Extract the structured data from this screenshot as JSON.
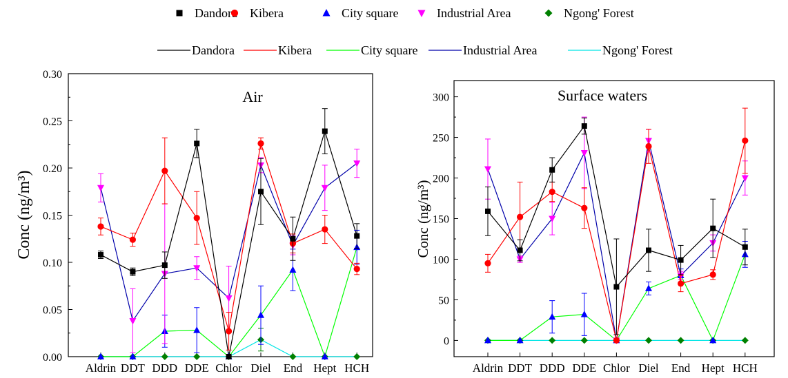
{
  "legend_markers": [
    {
      "label": "Dandora",
      "color": "#000000",
      "marker": "square"
    },
    {
      "label": "Kibera",
      "color": "#ff0000",
      "marker": "circle"
    },
    {
      "label": "City square",
      "color": "#0000ff",
      "marker": "triangle-up"
    },
    {
      "label": "Industrial Area",
      "color": "#ff00ff",
      "marker": "triangle-down"
    },
    {
      "label": "Ngong' Forest",
      "color": "#008000",
      "marker": "diamond"
    }
  ],
  "legend_lines": [
    {
      "label": "Dandora",
      "color": "#000000"
    },
    {
      "label": "Kibera",
      "color": "#ff0000"
    },
    {
      "label": "City square",
      "color": "#00ff00"
    },
    {
      "label": "Industrial Area",
      "color": "#0000aa"
    },
    {
      "label": "Ngong' Forest",
      "color": "#00e5e5"
    }
  ],
  "chart_data": [
    {
      "type": "line",
      "title": "Air",
      "ylabel": "Conc (ng/m³)",
      "ylim": [
        0,
        0.3
      ],
      "yticks": [
        0.0,
        0.05,
        0.1,
        0.15,
        0.2,
        0.25,
        0.3
      ],
      "ytick_labels": [
        "0.00",
        "0.05",
        "0.10",
        "0.15",
        "0.20",
        "0.25",
        "0.30"
      ],
      "categories": [
        "Aldrin",
        "DDT",
        "DDD",
        "DDE",
        "Chlor",
        "Diel",
        "End",
        "Hept",
        "HCH"
      ],
      "series": [
        {
          "name": "Dandora",
          "marker": "square",
          "marker_color": "#000000",
          "line_color": "#000000",
          "values": [
            0.108,
            0.09,
            0.097,
            0.226,
            0.0,
            0.175,
            0.125,
            0.239,
            0.128
          ],
          "errors": [
            0.004,
            0.004,
            0.014,
            0.015,
            0.0,
            0.035,
            0.023,
            0.024,
            0.013
          ]
        },
        {
          "name": "Kibera",
          "marker": "circle",
          "marker_color": "#ff0000",
          "line_color": "#ff0000",
          "values": [
            0.138,
            0.124,
            0.197,
            0.147,
            0.027,
            0.226,
            0.12,
            0.135,
            0.093
          ],
          "errors": [
            0.009,
            0.007,
            0.035,
            0.028,
            0.02,
            0.006,
            0.01,
            0.015,
            0.006
          ]
        },
        {
          "name": "City square",
          "marker": "triangle-up",
          "marker_color": "#0000ff",
          "line_color": "#00ff00",
          "values": [
            0.0,
            0.0,
            0.027,
            0.028,
            0.0,
            0.044,
            0.092,
            0.0,
            0.116
          ],
          "errors": [
            0.0,
            0.0,
            0.017,
            0.024,
            0.0,
            0.031,
            0.022,
            0.0,
            0.018
          ]
        },
        {
          "name": "Industrial Area",
          "marker": "triangle-down",
          "marker_color": "#ff00ff",
          "line_color": "#0000aa",
          "values": [
            0.179,
            0.038,
            0.088,
            0.094,
            0.062,
            0.203,
            0.118,
            0.179,
            0.205
          ],
          "errors": [
            0.015,
            0.034,
            0.074,
            0.012,
            0.034,
            0.008,
            0.01,
            0.024,
            0.015
          ]
        },
        {
          "name": "Ngong' Forest",
          "marker": "diamond",
          "marker_color": "#008000",
          "line_color": "#00e5e5",
          "values": [
            0.0,
            0.0,
            0.0,
            0.0,
            0.0,
            0.018,
            0.0,
            0.0,
            0.0
          ],
          "errors": [
            0.0,
            0.0,
            0.0,
            0.0,
            0.0,
            0.012,
            0.0,
            0.0,
            0.0
          ]
        }
      ]
    },
    {
      "type": "line",
      "title": "Surface waters",
      "ylabel": "Conc (ng/m³)",
      "ylim": [
        -20,
        320
      ],
      "yticks": [
        0,
        50,
        100,
        150,
        200,
        250,
        300
      ],
      "ytick_labels": [
        "0",
        "50",
        "100",
        "150",
        "200",
        "250",
        "300"
      ],
      "categories": [
        "Aldrin",
        "DDT",
        "DDD",
        "DDE",
        "Chlor",
        "Diel",
        "End",
        "Hept",
        "HCH"
      ],
      "series": [
        {
          "name": "Dandora",
          "marker": "square",
          "marker_color": "#000000",
          "line_color": "#000000",
          "values": [
            159,
            111,
            210,
            264,
            66,
            111,
            99,
            138,
            115
          ],
          "errors": [
            30,
            13,
            15,
            10,
            59,
            26,
            18,
            36,
            22
          ]
        },
        {
          "name": "Kibera",
          "marker": "circle",
          "marker_color": "#ff0000",
          "line_color": "#ff0000",
          "values": [
            95,
            152,
            183,
            163,
            0,
            239,
            70,
            81,
            246
          ],
          "errors": [
            11,
            43,
            12,
            25,
            0,
            21,
            10,
            6,
            40
          ]
        },
        {
          "name": "City square",
          "marker": "triangle-up",
          "marker_color": "#0000ff",
          "line_color": "#00ff00",
          "values": [
            0,
            0,
            29,
            32,
            0,
            64,
            80,
            0,
            106
          ],
          "errors": [
            0,
            0,
            20,
            26,
            0,
            8,
            8,
            0,
            16
          ]
        },
        {
          "name": "Industrial Area",
          "marker": "triangle-down",
          "marker_color": "#ff00ff",
          "line_color": "#0000aa",
          "values": [
            211,
            100,
            150,
            231,
            0,
            246,
            80,
            120,
            200
          ],
          "errors": [
            37,
            4,
            20,
            44,
            0,
            14,
            5,
            10,
            21
          ]
        },
        {
          "name": "Ngong' Forest",
          "marker": "diamond",
          "marker_color": "#008000",
          "line_color": "#00e5e5",
          "values": [
            0,
            0,
            0,
            0,
            0,
            0,
            0,
            0,
            0
          ],
          "errors": [
            0,
            0,
            0,
            0,
            0,
            0,
            0,
            0,
            0
          ]
        }
      ]
    }
  ]
}
